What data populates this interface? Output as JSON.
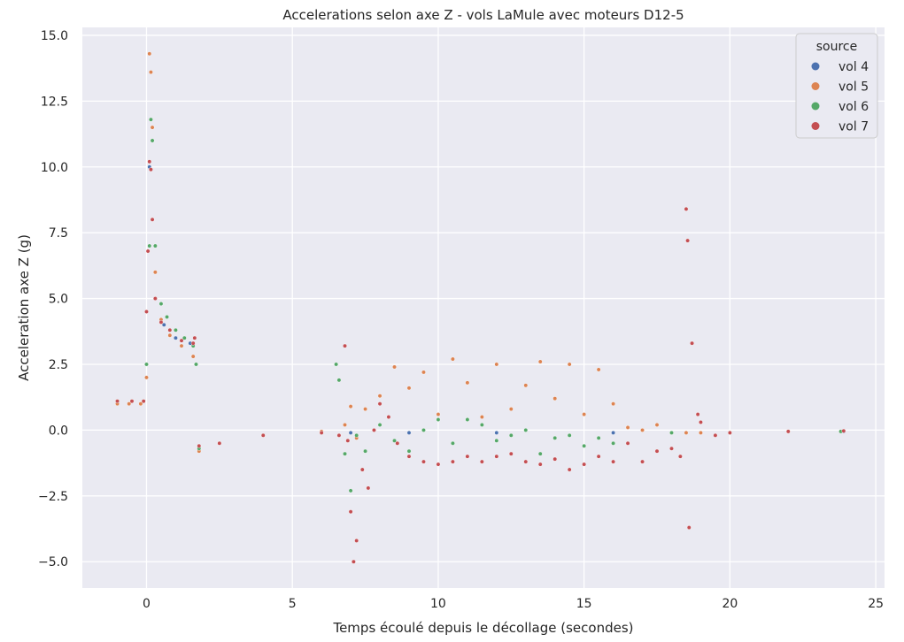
{
  "chart_data": {
    "type": "scatter",
    "title": "Accelerations selon axe Z - vols LaMule avec moteurs D12-5",
    "xlabel": "Temps écoulé depuis le décollage (secondes)",
    "ylabel": "Acceleration axe Z (g)",
    "xlim": [
      -2.2,
      25.3
    ],
    "ylim": [
      -6.0,
      15.3
    ],
    "xticks": [
      0,
      5,
      10,
      15,
      20,
      25
    ],
    "xtick_labels": [
      "0",
      "5",
      "10",
      "15",
      "20",
      "25"
    ],
    "yticks": [
      -5.0,
      -2.5,
      0.0,
      2.5,
      5.0,
      7.5,
      10.0,
      12.5,
      15.0
    ],
    "ytick_labels": [
      "−5.0",
      "−2.5",
      "0.0",
      "2.5",
      "5.0",
      "7.5",
      "10.0",
      "12.5",
      "15.0"
    ],
    "grid": true,
    "background": "#eaeaf2",
    "legend": {
      "title": "source",
      "placement": "top-right"
    },
    "series": [
      {
        "name": "vol 4",
        "color": "#4c72b0",
        "x": [
          -1.0,
          -0.5,
          -0.1,
          0.1,
          0.3,
          0.6,
          1.0,
          1.5,
          1.8,
          2.5,
          4.0,
          6.0,
          7.0,
          9.0,
          12.0,
          16.0,
          20.0,
          23.9
        ],
        "y": [
          1.1,
          1.1,
          1.1,
          10.0,
          5.0,
          4.0,
          3.5,
          3.3,
          -0.6,
          -0.5,
          -0.2,
          -0.1,
          -0.1,
          -0.1,
          -0.1,
          -0.1,
          -0.1,
          -0.05
        ]
      },
      {
        "name": "vol 5",
        "color": "#dd8452",
        "x": [
          -1.0,
          -0.6,
          -0.2,
          0.0,
          0.1,
          0.15,
          0.2,
          0.3,
          0.5,
          0.8,
          1.2,
          1.6,
          1.8,
          2.5,
          4.0,
          6.0,
          6.8,
          7.0,
          7.2,
          7.5,
          8.0,
          8.5,
          9.0,
          9.5,
          10.0,
          10.5,
          11.0,
          11.5,
          12.0,
          12.5,
          13.0,
          13.5,
          14.0,
          14.5,
          15.0,
          15.5,
          16.0,
          16.5,
          17.0,
          17.5,
          18.0,
          18.5,
          19.0,
          20.0,
          22.0,
          23.8
        ],
        "y": [
          1.0,
          1.0,
          1.0,
          2.0,
          14.3,
          13.6,
          11.5,
          6.0,
          4.2,
          3.6,
          3.2,
          2.8,
          -0.8,
          -0.5,
          -0.2,
          -0.05,
          0.2,
          0.9,
          -0.3,
          0.8,
          1.3,
          2.4,
          1.6,
          2.2,
          0.6,
          2.7,
          1.8,
          0.5,
          2.5,
          0.8,
          1.7,
          2.6,
          1.2,
          2.5,
          0.6,
          2.3,
          1.0,
          0.1,
          0.0,
          0.2,
          -0.1,
          -0.1,
          -0.1,
          -0.1,
          -0.05,
          -0.05
        ]
      },
      {
        "name": "vol 6",
        "color": "#55a868",
        "x": [
          -1.0,
          -0.5,
          -0.1,
          0.0,
          0.1,
          0.15,
          0.2,
          0.3,
          0.5,
          0.7,
          1.0,
          1.3,
          1.6,
          1.7,
          1.8,
          2.5,
          4.0,
          6.0,
          6.5,
          6.6,
          6.8,
          7.0,
          7.2,
          7.5,
          8.0,
          8.5,
          9.0,
          9.5,
          10.0,
          10.5,
          11.0,
          11.5,
          12.0,
          12.5,
          13.0,
          13.5,
          14.0,
          14.5,
          15.0,
          15.5,
          16.0,
          18.0,
          20.0,
          22.0,
          23.8
        ],
        "y": [
          1.1,
          1.1,
          1.1,
          2.5,
          7.0,
          11.8,
          11.0,
          7.0,
          4.8,
          4.3,
          3.8,
          3.5,
          3.2,
          2.5,
          -0.7,
          -0.5,
          -0.2,
          -0.1,
          2.5,
          1.9,
          -0.9,
          -2.3,
          -0.2,
          -0.8,
          0.2,
          -0.4,
          -0.8,
          0.0,
          0.4,
          -0.5,
          0.4,
          0.2,
          -0.4,
          -0.2,
          0.0,
          -0.9,
          -0.3,
          -0.2,
          -0.6,
          -0.3,
          -0.5,
          -0.1,
          -0.1,
          -0.05,
          -0.05
        ]
      },
      {
        "name": "vol 7",
        "color": "#c44e52",
        "x": [
          -1.0,
          -0.5,
          -0.1,
          0.0,
          0.05,
          0.1,
          0.15,
          0.2,
          0.3,
          0.5,
          0.8,
          1.2,
          1.6,
          1.65,
          1.8,
          2.5,
          4.0,
          6.0,
          6.6,
          6.8,
          6.9,
          7.0,
          7.1,
          7.2,
          7.4,
          7.6,
          7.8,
          8.0,
          8.3,
          8.6,
          9.0,
          9.5,
          10.0,
          10.5,
          11.0,
          11.5,
          12.0,
          12.5,
          13.0,
          13.5,
          14.0,
          14.5,
          15.0,
          15.5,
          16.0,
          16.5,
          17.0,
          17.5,
          18.0,
          18.3,
          18.5,
          18.55,
          18.6,
          18.7,
          18.9,
          19.0,
          19.5,
          20.0,
          22.0,
          23.9
        ],
        "y": [
          1.1,
          1.1,
          1.1,
          4.5,
          6.8,
          10.2,
          9.9,
          8.0,
          5.0,
          4.1,
          3.8,
          3.4,
          3.3,
          3.5,
          -0.6,
          -0.5,
          -0.2,
          -0.1,
          -0.2,
          3.2,
          -0.4,
          -3.1,
          -5.0,
          -4.2,
          -1.5,
          -2.2,
          0.0,
          1.0,
          0.5,
          -0.5,
          -1.0,
          -1.2,
          -1.3,
          -1.2,
          -1.0,
          -1.2,
          -1.0,
          -0.9,
          -1.2,
          -1.3,
          -1.1,
          -1.5,
          -1.3,
          -1.0,
          -1.2,
          -0.5,
          -1.2,
          -0.8,
          -0.7,
          -1.0,
          8.4,
          7.2,
          -3.7,
          3.3,
          0.6,
          0.3,
          -0.2,
          -0.1,
          -0.05,
          -0.03
        ]
      }
    ]
  }
}
